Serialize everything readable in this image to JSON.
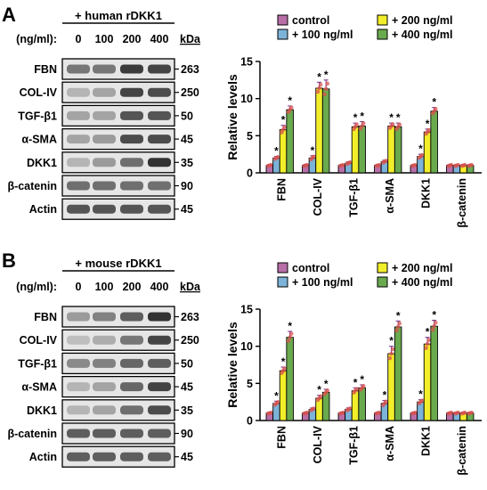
{
  "panels": [
    {
      "letter": "A",
      "blot": {
        "treatment": "+ human rDKK1",
        "dose_label": "(ng/ml):",
        "doses": [
          "0",
          "100",
          "200",
          "400"
        ],
        "kda_label": "kDa",
        "rows": [
          {
            "protein": "FBN",
            "kda": "263",
            "intensity": [
              0.55,
              0.55,
              0.9,
              0.85
            ]
          },
          {
            "protein": "COL-IV",
            "kda": "250",
            "intensity": [
              0.2,
              0.3,
              0.85,
              0.8
            ]
          },
          {
            "protein": "TGF-β1",
            "kda": "50",
            "intensity": [
              0.3,
              0.3,
              0.75,
              0.75
            ]
          },
          {
            "protein": "α-SMA",
            "kda": "45",
            "intensity": [
              0.3,
              0.35,
              0.8,
              0.8
            ]
          },
          {
            "protein": "DKK1",
            "kda": "35",
            "intensity": [
              0.2,
              0.35,
              0.6,
              0.95
            ]
          },
          {
            "protein": "β-catenin",
            "kda": "90",
            "intensity": [
              0.6,
              0.6,
              0.6,
              0.6
            ]
          },
          {
            "protein": "Actin",
            "kda": "45",
            "intensity": [
              0.75,
              0.75,
              0.75,
              0.75
            ]
          }
        ]
      }
    },
    {
      "letter": "B",
      "blot": {
        "treatment": "+ mouse rDKK1",
        "dose_label": "(ng/ml):",
        "doses": [
          "0",
          "100",
          "200",
          "400"
        ],
        "kda_label": "kDa",
        "rows": [
          {
            "protein": "FBN",
            "kda": "263",
            "intensity": [
              0.35,
              0.5,
              0.7,
              0.95
            ]
          },
          {
            "protein": "COL-IV",
            "kda": "250",
            "intensity": [
              0.15,
              0.25,
              0.55,
              0.85
            ]
          },
          {
            "protein": "TGF-β1",
            "kda": "50",
            "intensity": [
              0.45,
              0.5,
              0.65,
              0.7
            ]
          },
          {
            "protein": "α-SMA",
            "kda": "45",
            "intensity": [
              0.2,
              0.3,
              0.65,
              0.85
            ]
          },
          {
            "protein": "DKK1",
            "kda": "35",
            "intensity": [
              0.2,
              0.3,
              0.6,
              0.8
            ]
          },
          {
            "protein": "β-catenin",
            "kda": "90",
            "intensity": [
              0.7,
              0.7,
              0.7,
              0.7
            ]
          },
          {
            "protein": "Actin",
            "kda": "45",
            "intensity": [
              0.7,
              0.7,
              0.7,
              0.7
            ]
          }
        ]
      }
    }
  ],
  "series_colors": [
    "#b86fa8",
    "#7db3d8",
    "#f2ee2a",
    "#6aaa4e"
  ],
  "chart_data": [
    {
      "type": "bar",
      "title": "",
      "xlabel": "",
      "ylabel": "Relative levels",
      "ylim": [
        0,
        15
      ],
      "yticks": [
        "0",
        "5",
        "10",
        "15"
      ],
      "categories": [
        "FBN",
        "COL-IV",
        "TGF-β1",
        "α-SMA",
        "DKK1",
        "β-catenin"
      ],
      "legend": "top",
      "series": [
        {
          "name": "control",
          "values": [
            1.0,
            1.0,
            1.0,
            1.0,
            1.0,
            1.0
          ],
          "error": [
            0.1,
            0.1,
            0.1,
            0.1,
            0.1,
            0.1
          ]
        },
        {
          "name": "+ 100 ng/ml",
          "values": [
            2.0,
            2.0,
            1.3,
            1.5,
            2.2,
            1.0
          ],
          "error": [
            0.2,
            0.3,
            0.2,
            0.2,
            0.3,
            0.1
          ]
        },
        {
          "name": "+ 200 ng/ml",
          "values": [
            5.8,
            11.4,
            6.2,
            6.3,
            5.5,
            1.0
          ],
          "error": [
            0.6,
            0.8,
            0.5,
            0.4,
            0.4,
            0.1
          ]
        },
        {
          "name": "+ 400 ng/ml",
          "values": [
            8.5,
            11.3,
            6.3,
            6.2,
            8.3,
            1.0
          ],
          "error": [
            0.5,
            1.2,
            0.6,
            0.5,
            0.5,
            0.1
          ]
        }
      ],
      "significance": [
        [
          false,
          true,
          true,
          true
        ],
        [
          false,
          true,
          true,
          true
        ],
        [
          false,
          false,
          true,
          true
        ],
        [
          false,
          false,
          true,
          true
        ],
        [
          false,
          true,
          true,
          true
        ],
        [
          false,
          false,
          false,
          false
        ]
      ],
      "significance_mark": "*"
    },
    {
      "type": "bar",
      "title": "",
      "xlabel": "",
      "ylabel": "Relative levels",
      "ylim": [
        0,
        15
      ],
      "yticks": [
        "0",
        "5",
        "10",
        "15"
      ],
      "categories": [
        "FBN",
        "COL-IV",
        "TGF-β1",
        "α-SMA",
        "DKK1",
        "β-catenin"
      ],
      "legend": "top",
      "series": [
        {
          "name": "control",
          "values": [
            1.0,
            1.0,
            1.0,
            1.0,
            1.0,
            1.0
          ],
          "error": [
            0.1,
            0.1,
            0.1,
            0.1,
            0.1,
            0.1
          ]
        },
        {
          "name": "+ 100 ng/ml",
          "values": [
            2.3,
            1.5,
            1.5,
            2.3,
            2.5,
            1.0
          ],
          "error": [
            0.3,
            0.2,
            0.2,
            0.4,
            0.3,
            0.1
          ]
        },
        {
          "name": "+ 200 ng/ml",
          "values": [
            6.7,
            3.0,
            4.0,
            9.0,
            10.3,
            1.0
          ],
          "error": [
            0.5,
            0.4,
            0.4,
            1.0,
            0.9,
            0.1
          ]
        },
        {
          "name": "+ 400 ng/ml",
          "values": [
            11.2,
            3.8,
            4.4,
            12.6,
            12.7,
            1.0
          ],
          "error": [
            0.8,
            0.4,
            0.4,
            0.8,
            0.8,
            0.1
          ]
        }
      ],
      "significance": [
        [
          false,
          true,
          true,
          true
        ],
        [
          false,
          false,
          true,
          true
        ],
        [
          false,
          false,
          true,
          true
        ],
        [
          false,
          true,
          true,
          true
        ],
        [
          false,
          true,
          true,
          true
        ],
        [
          false,
          false,
          false,
          false
        ]
      ],
      "significance_mark": "*"
    }
  ]
}
